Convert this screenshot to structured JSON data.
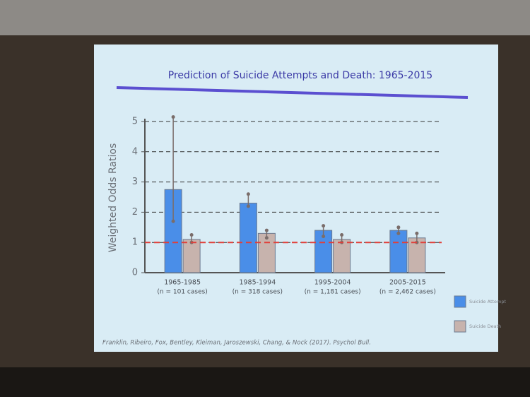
{
  "chart_data": {
    "type": "bar",
    "title": "Prediction of Suicide Attempts and Death:  1965-2015",
    "y_label": "Weighted Odds Ratios",
    "categories": [
      "1965-1985",
      "1985-1994",
      "1995-2004",
      "2005-2015"
    ],
    "sample_sizes": [
      "(n = 101 cases)",
      "(n = 318 cases)",
      "(n = 1,181 cases)",
      "(n = 2,462 cases)"
    ],
    "series": [
      {
        "name": "Suicide Attempt",
        "color": "#4a8ee8",
        "values": [
          2.75,
          2.3,
          1.4,
          1.4
        ],
        "lower": [
          1.7,
          2.2,
          1.2,
          1.3
        ],
        "upper": [
          5.15,
          2.6,
          1.55,
          1.5
        ]
      },
      {
        "name": "Suicide Death",
        "color": "#c7b3ad",
        "values": [
          1.1,
          1.3,
          1.1,
          1.15
        ],
        "lower": [
          1.0,
          1.15,
          1.0,
          1.0
        ],
        "upper": [
          1.25,
          1.4,
          1.25,
          1.3
        ]
      }
    ],
    "reference_line": 1,
    "ylim": [
      0,
      5
    ],
    "yticks": [
      0,
      1,
      2,
      3,
      4,
      5
    ],
    "grid": true,
    "citation": "Franklin, Ribeiro, Fox, Bentley, Kleiman, Jaroszewski, Chang, & Nock (2017). Psychol Bull."
  }
}
